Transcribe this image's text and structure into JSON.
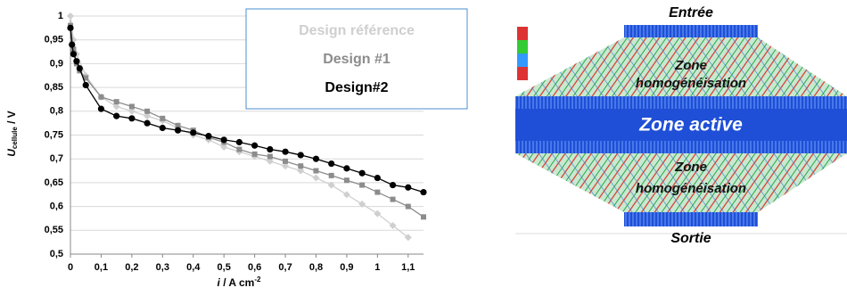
{
  "chart_data": {
    "type": "line",
    "ylabel": [
      "U",
      "cellule",
      " / V"
    ],
    "xlabel": [
      "i",
      " / A cm",
      "-2"
    ],
    "xlim": [
      0,
      1.15
    ],
    "ylim": [
      0.5,
      1
    ],
    "xticks": [
      0,
      {
        "value": 0.1,
        "label": "0,1"
      },
      {
        "value": 0.2,
        "label": "0,2"
      },
      {
        "value": 0.3,
        "label": "0,3"
      },
      {
        "value": 0.4,
        "label": "0,4"
      },
      {
        "value": 0.5,
        "label": "0,5"
      },
      {
        "value": 0.6,
        "label": "0,6"
      },
      {
        "value": 0.7,
        "label": "0,7"
      },
      {
        "value": 0.8,
        "label": "0,8"
      },
      {
        "value": 0.9,
        "label": "0,9"
      },
      1,
      {
        "value": 1.1,
        "label": "1,1"
      }
    ],
    "yticks": [
      {
        "value": 0.5,
        "label": "0,5"
      },
      {
        "value": 0.55,
        "label": "0,55"
      },
      {
        "value": 0.6,
        "label": "0,6"
      },
      {
        "value": 0.65,
        "label": "0,65"
      },
      {
        "value": 0.7,
        "label": "0,7"
      },
      {
        "value": 0.75,
        "label": "0,75"
      },
      {
        "value": 0.8,
        "label": "0,8"
      },
      {
        "value": 0.85,
        "label": "0,85"
      },
      {
        "value": 0.9,
        "label": "0,9"
      },
      {
        "value": 0.95,
        "label": "0,95"
      },
      1
    ],
    "grid": true,
    "series": [
      {
        "name": "Design référence",
        "color": "#cfcfcf",
        "marker": "diamond",
        "x": [
          0,
          0.01,
          0.02,
          0.05,
          0.1,
          0.15,
          0.2,
          0.25,
          0.3,
          0.35,
          0.4,
          0.45,
          0.5,
          0.55,
          0.6,
          0.65,
          0.7,
          0.75,
          0.8,
          0.85,
          0.9,
          0.95,
          1,
          1.05,
          1.1
        ],
        "values": [
          1,
          0.95,
          0.92,
          0.875,
          0.83,
          0.81,
          0.8,
          0.79,
          0.78,
          0.765,
          0.75,
          0.74,
          0.725,
          0.715,
          0.705,
          0.695,
          0.685,
          0.675,
          0.66,
          0.645,
          0.625,
          0.605,
          0.585,
          0.56,
          0.535
        ]
      },
      {
        "name": "Design #1",
        "color": "#8c8c8c",
        "marker": "square",
        "x": [
          0,
          0.01,
          0.02,
          0.03,
          0.05,
          0.1,
          0.15,
          0.2,
          0.25,
          0.3,
          0.35,
          0.4,
          0.45,
          0.5,
          0.55,
          0.6,
          0.65,
          0.7,
          0.75,
          0.8,
          0.85,
          0.9,
          0.95,
          1,
          1.05,
          1.1,
          1.15
        ],
        "values": [
          0.98,
          0.93,
          0.9,
          0.885,
          0.87,
          0.83,
          0.82,
          0.81,
          0.8,
          0.785,
          0.77,
          0.76,
          0.745,
          0.735,
          0.72,
          0.71,
          0.705,
          0.695,
          0.685,
          0.675,
          0.665,
          0.655,
          0.645,
          0.63,
          0.615,
          0.6,
          0.578
        ]
      },
      {
        "name": "Design#2",
        "color": "#000000",
        "marker": "circle",
        "x": [
          0,
          0.005,
          0.01,
          0.02,
          0.03,
          0.05,
          0.1,
          0.15,
          0.2,
          0.25,
          0.3,
          0.35,
          0.4,
          0.45,
          0.5,
          0.55,
          0.6,
          0.65,
          0.7,
          0.75,
          0.8,
          0.85,
          0.9,
          0.95,
          1,
          1.05,
          1.1,
          1.15
        ],
        "values": [
          0.975,
          0.94,
          0.92,
          0.905,
          0.89,
          0.855,
          0.805,
          0.79,
          0.785,
          0.775,
          0.765,
          0.76,
          0.755,
          0.748,
          0.74,
          0.735,
          0.728,
          0.72,
          0.715,
          0.708,
          0.7,
          0.69,
          0.68,
          0.67,
          0.66,
          0.645,
          0.64,
          0.63
        ]
      }
    ]
  },
  "diagram": {
    "inlet": "Entrée",
    "top_zone": [
      "Zone",
      "homogénéisation"
    ],
    "active": "Zone active",
    "bottom_zone": [
      "Zone",
      "homogénéisation"
    ],
    "outlet": "Sortie"
  }
}
